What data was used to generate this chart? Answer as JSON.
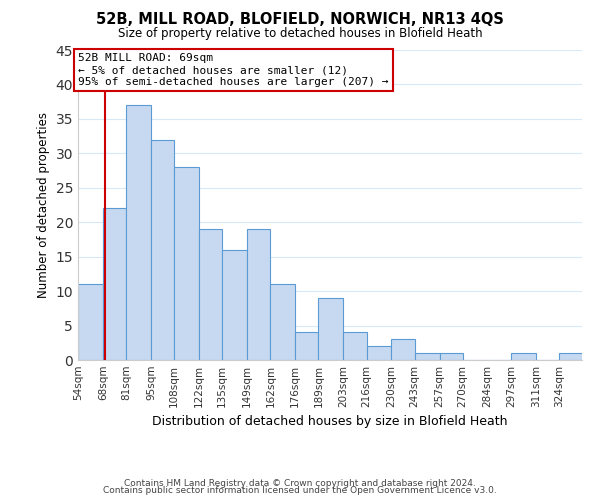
{
  "title": "52B, MILL ROAD, BLOFIELD, NORWICH, NR13 4QS",
  "subtitle": "Size of property relative to detached houses in Blofield Heath",
  "xlabel": "Distribution of detached houses by size in Blofield Heath",
  "ylabel": "Number of detached properties",
  "footer_line1": "Contains HM Land Registry data © Crown copyright and database right 2024.",
  "footer_line2": "Contains public sector information licensed under the Open Government Licence v3.0.",
  "bin_labels": [
    "54sqm",
    "68sqm",
    "81sqm",
    "95sqm",
    "108sqm",
    "122sqm",
    "135sqm",
    "149sqm",
    "162sqm",
    "176sqm",
    "189sqm",
    "203sqm",
    "216sqm",
    "230sqm",
    "243sqm",
    "257sqm",
    "270sqm",
    "284sqm",
    "297sqm",
    "311sqm",
    "324sqm"
  ],
  "bar_values": [
    11,
    22,
    37,
    32,
    28,
    19,
    16,
    19,
    11,
    4,
    9,
    4,
    2,
    3,
    1,
    1,
    0,
    0,
    1,
    0,
    1
  ],
  "bar_color": "#c6d9f0",
  "bar_edge_color": "#5b9bd5",
  "ylim": [
    0,
    45
  ],
  "yticks": [
    0,
    5,
    10,
    15,
    20,
    25,
    30,
    35,
    40,
    45
  ],
  "property_line_x": 69,
  "annotation_title": "52B MILL ROAD: 69sqm",
  "annotation_line1": "← 5% of detached houses are smaller (12)",
  "annotation_line2": "95% of semi-detached houses are larger (207) →",
  "annotation_box_color": "#ffffff",
  "annotation_box_edge": "#cc0000",
  "vline_color": "#cc0000",
  "bin_edges": [
    54,
    68,
    81,
    95,
    108,
    122,
    135,
    149,
    162,
    176,
    189,
    203,
    216,
    230,
    243,
    257,
    270,
    284,
    297,
    311,
    324,
    337
  ]
}
